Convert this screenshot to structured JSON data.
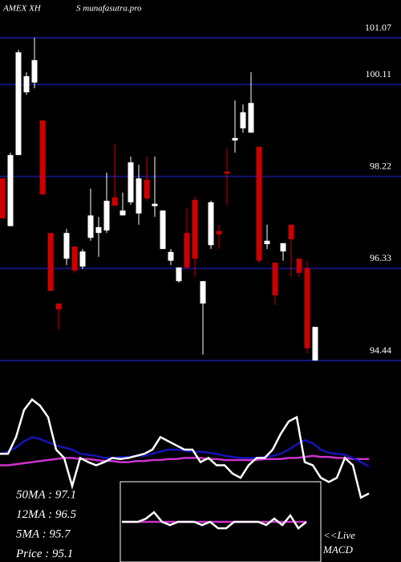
{
  "chart_data": [
    {
      "type": "candlestick",
      "title": "AMEX XH",
      "subtitle": "S munafasutra.pro",
      "ylim": [
        94.44,
        101.07
      ],
      "yticks": [
        101.07,
        100.11,
        98.22,
        96.33,
        94.44
      ],
      "grid": true,
      "grid_color": "#14147a",
      "up_color": "#ffffff",
      "down_color": "#cc0000",
      "candles": [
        [
          98.18,
          98.18,
          97.36,
          97.36
        ],
        [
          97.2,
          98.71,
          97.2,
          98.66
        ],
        [
          98.66,
          100.82,
          98.66,
          100.77
        ],
        [
          99.95,
          100.36,
          99.9,
          100.28
        ],
        [
          100.15,
          101.07,
          100.03,
          100.61
        ],
        [
          99.37,
          99.37,
          97.85,
          97.85
        ],
        [
          97.06,
          97.06,
          95.87,
          95.87
        ],
        [
          95.61,
          95.61,
          95.08,
          95.49
        ],
        [
          96.53,
          97.14,
          96.4,
          97.06
        ],
        [
          96.78,
          96.78,
          96.24,
          96.29
        ],
        [
          96.37,
          96.73,
          96.32,
          96.68
        ],
        [
          96.96,
          97.97,
          96.9,
          97.42
        ],
        [
          97.06,
          97.39,
          96.57,
          97.18
        ],
        [
          97.11,
          98.3,
          97.06,
          97.72
        ],
        [
          97.79,
          98.88,
          97.62,
          97.62
        ],
        [
          97.42,
          97.89,
          97.42,
          97.52
        ],
        [
          97.69,
          98.63,
          97.64,
          98.51
        ],
        [
          97.46,
          98.46,
          97.23,
          98.18
        ],
        [
          98.15,
          98.63,
          97.72,
          97.77
        ],
        [
          97.61,
          98.63,
          97.39,
          97.66
        ],
        [
          96.73,
          97.52,
          96.73,
          97.52
        ],
        [
          96.49,
          96.73,
          96.4,
          96.67
        ],
        [
          96.07,
          96.35,
          96.04,
          96.35
        ],
        [
          97.06,
          97.56,
          96.32,
          96.35
        ],
        [
          97.74,
          97.8,
          96.16,
          96.53
        ],
        [
          95.61,
          96.07,
          94.56,
          96.07
        ],
        [
          96.81,
          97.72,
          96.73,
          97.69
        ],
        [
          97.1,
          97.23,
          96.73,
          97.03
        ],
        [
          98.32,
          98.79,
          97.64,
          98.28
        ],
        [
          98.96,
          99.78,
          98.71,
          99.01
        ],
        [
          99.21,
          99.7,
          99.12,
          99.54
        ],
        [
          99.12,
          100.36,
          99.12,
          99.73
        ],
        [
          98.83,
          98.83,
          96.44,
          96.49
        ],
        [
          96.83,
          97.23,
          96.73,
          96.9
        ],
        [
          96.45,
          96.45,
          95.58,
          95.78
        ],
        [
          96.68,
          96.85,
          96.49,
          96.85
        ],
        [
          97.23,
          97.23,
          96.16,
          96.93
        ],
        [
          96.53,
          96.53,
          96.16,
          96.24
        ],
        [
          96.34,
          96.48,
          94.59,
          94.69
        ],
        [
          94.44,
          95.13,
          94.44,
          95.13
        ]
      ],
      "annotations": [
        "50MA : 97.1",
        "12MA : 96.5",
        "5MA : 95.7",
        "Price  : 95.1"
      ]
    },
    {
      "type": "line",
      "ylim": [
        0,
        100
      ],
      "series": [
        {
          "color": "#cc33cc",
          "values": [
            35,
            35,
            36,
            37,
            38,
            39,
            40,
            41,
            42,
            42,
            41,
            41,
            40,
            39,
            39,
            38,
            38,
            39,
            39,
            40,
            40,
            41,
            41,
            42,
            42,
            42,
            41,
            41,
            40,
            40,
            40,
            40,
            40,
            41,
            41,
            41,
            42,
            42,
            43,
            44,
            43,
            43,
            42,
            42,
            41,
            41,
            41
          ]
        },
        {
          "color": "#1414b4",
          "values": [
            46,
            48,
            52,
            58,
            62,
            60,
            57,
            54,
            52,
            50,
            46,
            45,
            44,
            42,
            42,
            43,
            43,
            44,
            44,
            46,
            48,
            50,
            50,
            49,
            48,
            48,
            47,
            46,
            44,
            43,
            42,
            42,
            42,
            43,
            44,
            46,
            50,
            55,
            59,
            56,
            50,
            47,
            46,
            45,
            42,
            38,
            34
          ]
        },
        {
          "color": "#ffffff",
          "values": [
            46,
            46,
            62,
            88,
            98,
            92,
            81,
            50,
            42,
            15,
            42,
            38,
            35,
            38,
            42,
            41,
            42,
            44,
            46,
            50,
            62,
            58,
            54,
            50,
            50,
            38,
            42,
            35,
            35,
            27,
            23,
            35,
            42,
            42,
            50,
            65,
            77,
            81,
            38,
            35,
            23,
            19,
            23,
            42,
            35,
            4,
            8
          ]
        }
      ]
    },
    {
      "type": "line",
      "title": "MACD",
      "subtitle": "<<Live",
      "ylim": [
        -10,
        10
      ],
      "series": [
        {
          "color": "#cc33cc",
          "values": [
            0,
            0,
            0,
            0,
            0,
            0,
            0,
            0,
            0,
            0,
            0,
            0,
            0,
            0,
            0,
            0,
            0,
            0,
            0,
            0,
            0,
            0,
            0,
            0
          ]
        },
        {
          "color": "#ffffff",
          "values": [
            0,
            0,
            0,
            1,
            3,
            0,
            -1,
            0,
            0,
            0,
            -1,
            0,
            -2,
            -2,
            0,
            0,
            0,
            0,
            -1,
            1,
            -1,
            2,
            -2,
            0
          ]
        }
      ]
    }
  ]
}
